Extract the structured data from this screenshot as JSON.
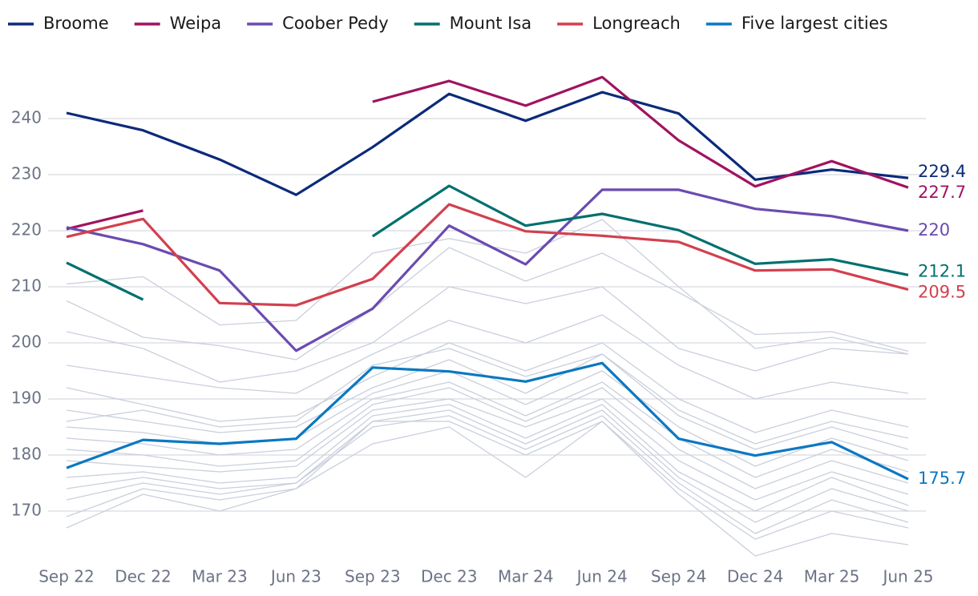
{
  "chart_data": {
    "type": "line",
    "categories": [
      "Sep 22",
      "Dec 22",
      "Mar 23",
      "Jun 23",
      "Sep 23",
      "Dec 23",
      "Mar 24",
      "Jun 24",
      "Sep 24",
      "Dec 24",
      "Mar 25",
      "Jun 25"
    ],
    "ylim": [
      164,
      252
    ],
    "yticks": [
      170,
      180,
      190,
      200,
      210,
      220,
      230,
      240
    ],
    "grid": true,
    "legend": "top",
    "series": [
      {
        "color": "#c9cfdc",
        "values": [
          210.5,
          211.8,
          203.2,
          204,
          216,
          218.6,
          216,
          222,
          210,
          199,
          201,
          198
        ]
      },
      {
        "color": "#c9cfdc",
        "values": [
          207.5,
          201,
          199.5,
          197,
          206,
          217,
          211,
          216,
          209,
          201.5,
          202,
          198.5
        ]
      },
      {
        "color": "#c9cfdc",
        "values": [
          202,
          199,
          193,
          195,
          200,
          210,
          207,
          210,
          199,
          195,
          199,
          198
        ]
      },
      {
        "color": "#c9cfdc",
        "values": [
          196,
          194,
          192,
          191,
          198,
          204,
          200,
          205,
          196,
          190,
          193,
          191
        ]
      },
      {
        "color": "#c9cfdc",
        "values": [
          192,
          189,
          186,
          187,
          194,
          200,
          195,
          200,
          190,
          184,
          188,
          185
        ]
      },
      {
        "color": "#c9cfdc",
        "values": [
          188,
          186,
          184,
          185,
          192,
          197,
          191,
          198,
          187,
          181,
          185,
          181
        ]
      },
      {
        "color": "#c9cfdc",
        "values": [
          185,
          184,
          182,
          183,
          191,
          195,
          189,
          195,
          185,
          178,
          183,
          179
        ]
      },
      {
        "color": "#c9cfdc",
        "values": [
          183,
          182,
          180,
          181,
          190,
          193,
          187,
          193,
          183,
          176,
          181,
          177
        ]
      },
      {
        "color": "#c9cfdc",
        "values": [
          181,
          180,
          178,
          179,
          189,
          192,
          186,
          192,
          181,
          174,
          179,
          175
        ]
      },
      {
        "color": "#c9cfdc",
        "values": [
          179,
          178,
          177,
          178,
          188,
          190,
          185,
          190,
          179,
          172,
          177,
          173
        ]
      },
      {
        "color": "#c9cfdc",
        "values": [
          176,
          177,
          175,
          176,
          187,
          189,
          183,
          189,
          177,
          170,
          176,
          171
        ]
      },
      {
        "color": "#c9cfdc",
        "values": [
          174,
          176,
          174,
          175,
          186,
          188,
          182,
          188,
          176,
          168,
          174,
          170
        ]
      },
      {
        "color": "#c9cfdc",
        "values": [
          172,
          175,
          173,
          175,
          185,
          187,
          181,
          187,
          175,
          166,
          172,
          168
        ]
      },
      {
        "color": "#c9cfdc",
        "values": [
          169,
          174,
          172,
          174,
          186,
          186,
          180,
          186,
          174,
          165,
          170,
          167
        ]
      },
      {
        "color": "#c9cfdc",
        "values": [
          167,
          173,
          170,
          174,
          182,
          185,
          176,
          186,
          173,
          162,
          166,
          164
        ]
      },
      {
        "color": "#c9cfdc",
        "values": [
          186,
          188,
          185,
          186,
          196,
          199,
          194,
          198,
          188,
          182,
          186,
          183
        ]
      },
      {
        "name": "Broome",
        "color": "#0b2a7a",
        "values": [
          241,
          237.9,
          232.7,
          226.4,
          234.9,
          244.4,
          239.6,
          244.7,
          240.9,
          229.1,
          230.9,
          229.4
        ]
      },
      {
        "name": "Weipa",
        "color": "#a0135f",
        "values": [
          220.3,
          223.6,
          null,
          null,
          243,
          246.7,
          242.3,
          247.4,
          236.1,
          227.9,
          232.4,
          227.7
        ]
      },
      {
        "name": "Coober Pedy",
        "color": "#6a4bb0",
        "values": [
          220.6,
          217.6,
          212.9,
          198.6,
          206.1,
          220.9,
          214,
          227.3,
          227.3,
          223.9,
          222.6,
          220
        ]
      },
      {
        "name": "Mount Isa",
        "color": "#00706f",
        "values": [
          214.3,
          207.7,
          null,
          null,
          219,
          228,
          220.9,
          223,
          220.1,
          214.1,
          214.9,
          212.1
        ]
      },
      {
        "name": "Longreach",
        "color": "#d2404e",
        "values": [
          218.9,
          222.1,
          207.1,
          206.7,
          211.4,
          224.7,
          219.9,
          219.1,
          218,
          212.9,
          213.1,
          209.5
        ]
      },
      {
        "name": "Five largest cities",
        "color": "#0a78c2",
        "values": [
          177.7,
          182.7,
          182,
          182.9,
          195.6,
          194.9,
          193.1,
          196.4,
          182.9,
          179.9,
          182.3,
          175.7
        ]
      }
    ]
  }
}
